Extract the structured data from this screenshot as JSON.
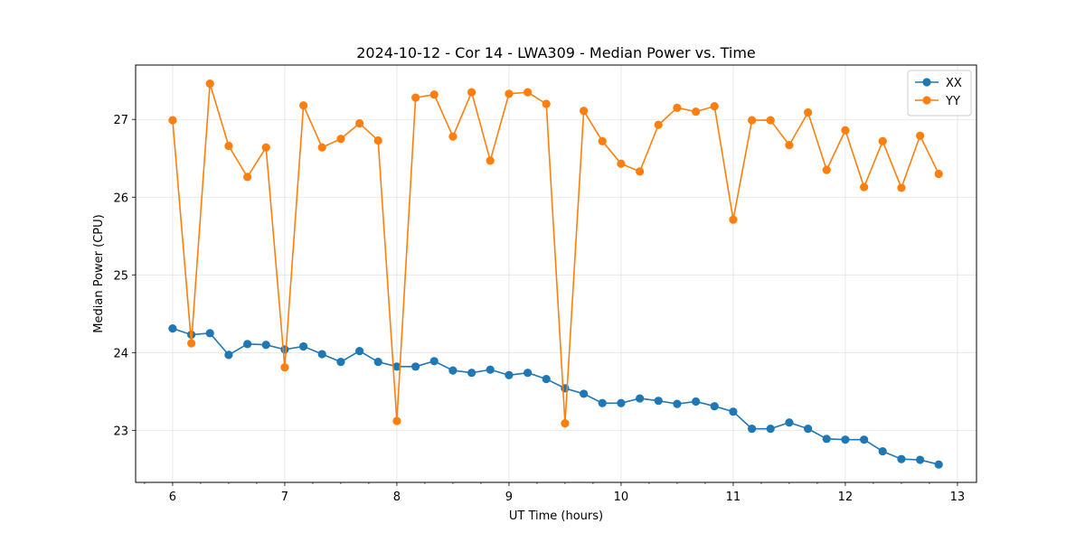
{
  "chart_data": {
    "type": "line",
    "title": "2024-10-12 - Cor 14 - LWA309 - Median Power vs. Time",
    "xlabel": "UT Time (hours)",
    "ylabel": "Median Power (CPU)",
    "xlim": [
      5.67,
      13.17
    ],
    "ylim": [
      22.33,
      27.7
    ],
    "xticks": [
      6,
      7,
      8,
      9,
      10,
      11,
      12,
      13
    ],
    "xminor_step": 0.25,
    "yticks": [
      23,
      24,
      25,
      26,
      27
    ],
    "grid": true,
    "legend_position": "top-right",
    "x": [
      6.0,
      6.167,
      6.333,
      6.5,
      6.667,
      6.833,
      7.0,
      7.167,
      7.333,
      7.5,
      7.667,
      7.833,
      8.0,
      8.167,
      8.333,
      8.5,
      8.667,
      8.833,
      9.0,
      9.167,
      9.333,
      9.5,
      9.667,
      9.833,
      10.0,
      10.167,
      10.333,
      10.5,
      10.667,
      10.833,
      11.0,
      11.167,
      11.333,
      11.5,
      11.667,
      11.833,
      12.0,
      12.167,
      12.333,
      12.5,
      12.667,
      12.833
    ],
    "series": [
      {
        "name": "XX",
        "color": "#1f77b4",
        "values": [
          24.31,
          24.23,
          24.25,
          23.97,
          24.11,
          24.1,
          24.04,
          24.08,
          23.98,
          23.88,
          24.02,
          23.88,
          23.82,
          23.82,
          23.89,
          23.77,
          23.74,
          23.78,
          23.71,
          23.74,
          23.66,
          23.54,
          23.47,
          23.35,
          23.35,
          23.41,
          23.38,
          23.34,
          23.37,
          23.31,
          23.24,
          23.02,
          23.02,
          23.1,
          23.02,
          22.89,
          22.88,
          22.88,
          22.73,
          22.63,
          22.62,
          22.56
        ]
      },
      {
        "name": "YY",
        "color": "#ff7f0e",
        "values": [
          26.99,
          24.12,
          27.46,
          26.66,
          26.26,
          26.64,
          23.81,
          27.18,
          26.64,
          26.75,
          26.95,
          26.73,
          23.12,
          27.28,
          27.32,
          26.78,
          27.35,
          26.47,
          27.33,
          27.35,
          27.2,
          23.09,
          27.11,
          26.72,
          26.43,
          26.33,
          26.93,
          27.15,
          27.1,
          27.17,
          25.71,
          26.99,
          26.99,
          26.67,
          27.09,
          26.35,
          26.86,
          26.13,
          26.72,
          26.12,
          26.79,
          26.3
        ]
      }
    ]
  }
}
